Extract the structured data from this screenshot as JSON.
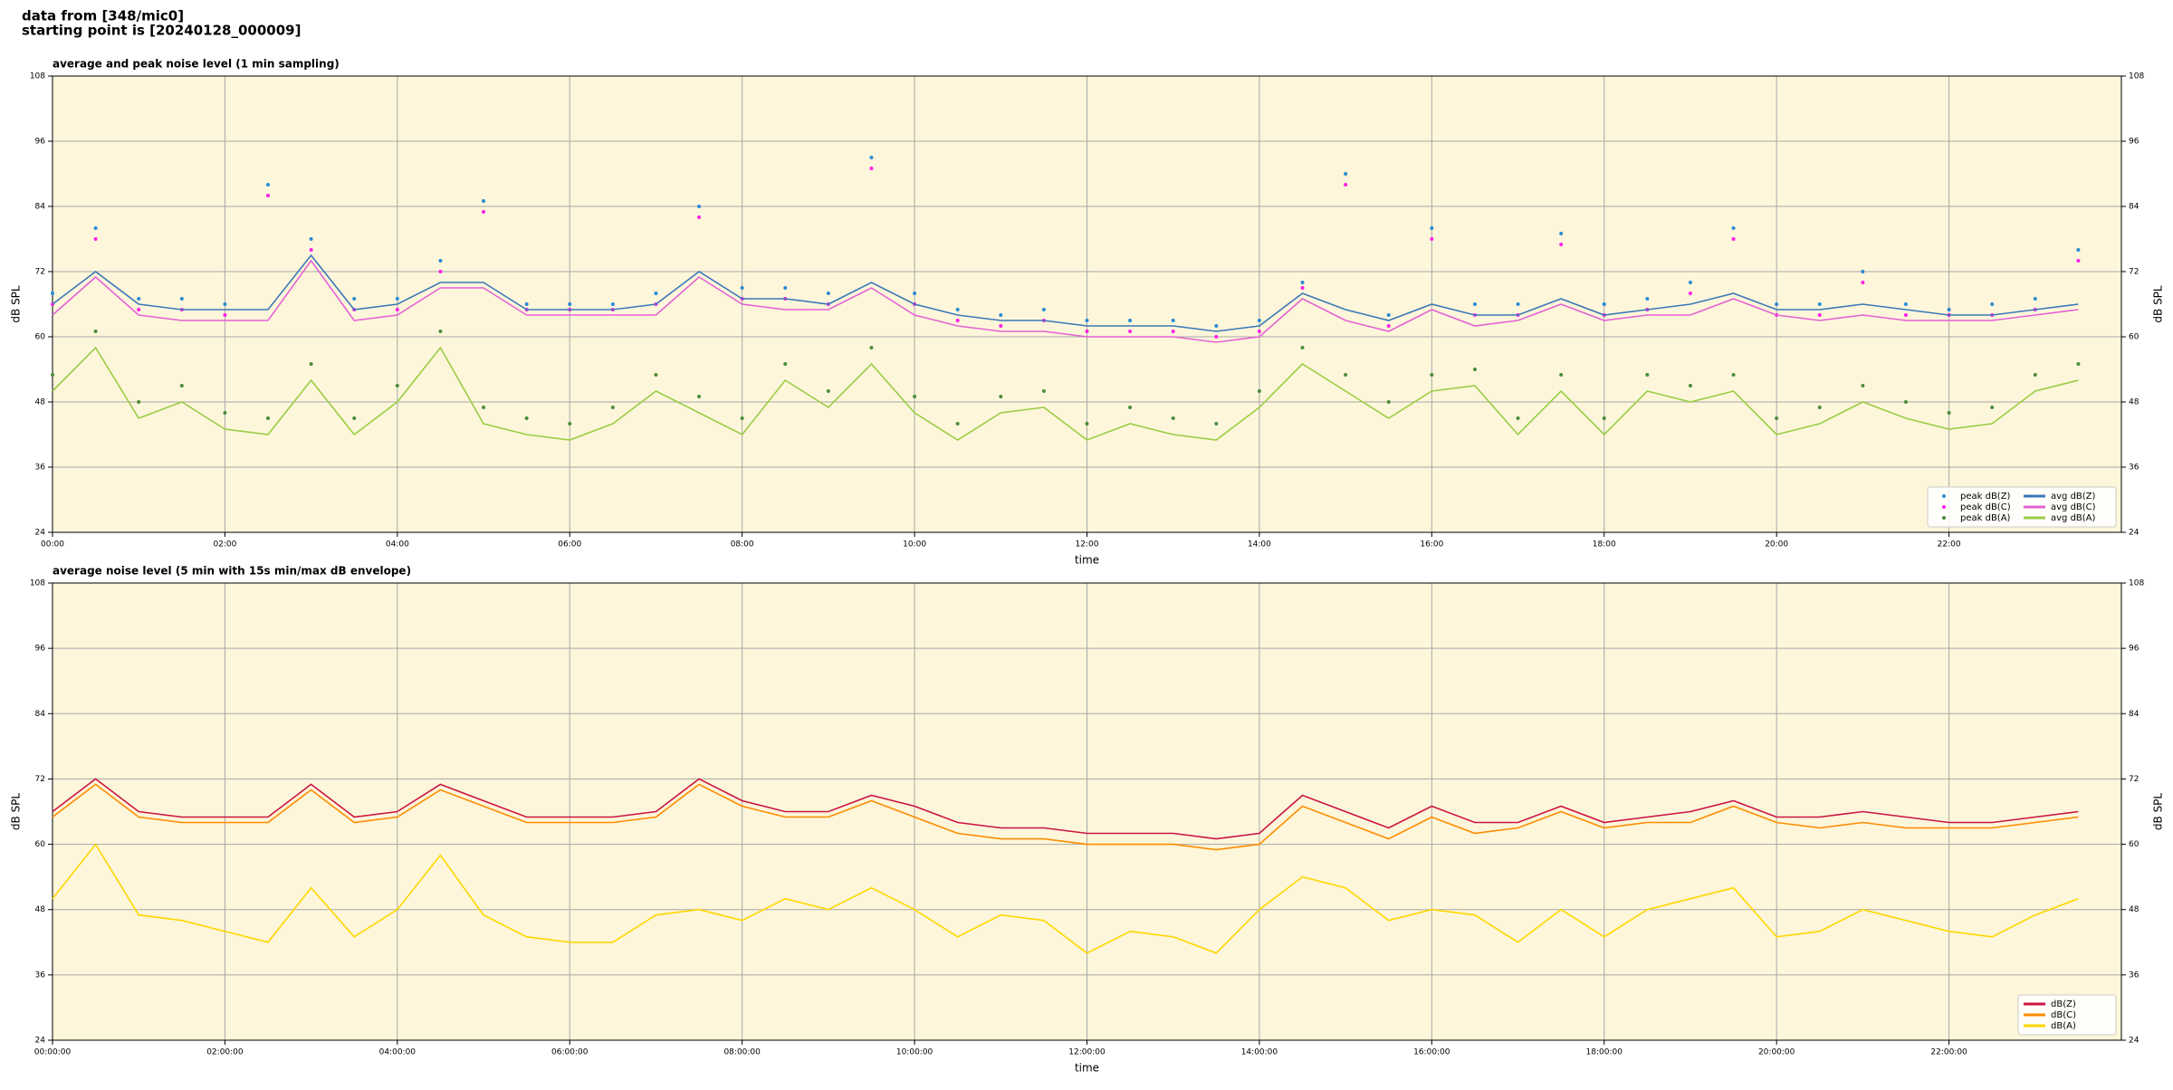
{
  "header": {
    "line1": "data from [348/mic0]",
    "line2": "starting point is [20240128_000009]"
  },
  "chart_data": [
    {
      "type": "line",
      "title": "average and peak noise level (1 min sampling)",
      "xlabel": "time",
      "ylabel": "dB SPL",
      "x": [
        0,
        0.5,
        1,
        1.5,
        2,
        2.5,
        3,
        3.5,
        4,
        4.5,
        5,
        5.5,
        6,
        6.5,
        7,
        7.5,
        8,
        8.5,
        9,
        9.5,
        10,
        10.5,
        11,
        11.5,
        12,
        12.5,
        13,
        13.5,
        14,
        14.5,
        15,
        15.5,
        16,
        16.5,
        17,
        17.5,
        18,
        18.5,
        19,
        19.5,
        20,
        20.5,
        21,
        21.5,
        22,
        22.5,
        23,
        23.5
      ],
      "xlim": [
        0,
        24
      ],
      "xticks": [
        {
          "value": 0,
          "label": "00:00"
        },
        {
          "value": 2,
          "label": "02:00"
        },
        {
          "value": 4,
          "label": "04:00"
        },
        {
          "value": 6,
          "label": "06:00"
        },
        {
          "value": 8,
          "label": "08:00"
        },
        {
          "value": 10,
          "label": "10:00"
        },
        {
          "value": 12,
          "label": "12:00"
        },
        {
          "value": 14,
          "label": "14:00"
        },
        {
          "value": 16,
          "label": "16:00"
        },
        {
          "value": 18,
          "label": "18:00"
        },
        {
          "value": 20,
          "label": "20:00"
        },
        {
          "value": 22,
          "label": "22:00"
        }
      ],
      "ylim": [
        24,
        108
      ],
      "yticks": [
        24,
        36,
        48,
        60,
        72,
        84,
        96,
        108
      ],
      "grid": true,
      "legend": "lower right",
      "series": [
        {
          "name": "peak dB(Z)",
          "color": "#2a8ad6",
          "style": "points",
          "values": [
            68,
            80,
            67,
            67,
            66,
            88,
            78,
            67,
            67,
            74,
            85,
            66,
            66,
            66,
            68,
            84,
            69,
            69,
            68,
            93,
            68,
            65,
            64,
            65,
            63,
            63,
            63,
            62,
            63,
            70,
            90,
            64,
            80,
            66,
            66,
            79,
            66,
            67,
            70,
            80,
            66,
            66,
            72,
            66,
            65,
            66,
            67,
            76
          ]
        },
        {
          "name": "peak dB(C)",
          "color": "#ff1ee8",
          "style": "points",
          "values": [
            66,
            78,
            65,
            65,
            64,
            86,
            76,
            65,
            65,
            72,
            83,
            65,
            65,
            65,
            66,
            82,
            67,
            67,
            66,
            91,
            66,
            63,
            62,
            63,
            61,
            61,
            61,
            60,
            61,
            69,
            88,
            62,
            78,
            64,
            64,
            77,
            64,
            65,
            68,
            78,
            64,
            64,
            70,
            64,
            64,
            64,
            65,
            74
          ]
        },
        {
          "name": "peak dB(A)",
          "color": "#4a8c3c",
          "style": "points",
          "values": [
            53,
            61,
            48,
            51,
            46,
            45,
            55,
            45,
            51,
            61,
            47,
            45,
            44,
            47,
            53,
            49,
            45,
            55,
            50,
            58,
            49,
            44,
            49,
            50,
            44,
            47,
            45,
            44,
            50,
            58,
            53,
            48,
            53,
            54,
            45,
            53,
            45,
            53,
            51,
            53,
            45,
            47,
            51,
            48,
            46,
            47,
            53,
            55
          ]
        },
        {
          "name": "avg dB(Z)",
          "color": "#3b78b8",
          "style": "line",
          "values": [
            66,
            72,
            66,
            65,
            65,
            65,
            75,
            65,
            66,
            70,
            70,
            65,
            65,
            65,
            66,
            72,
            67,
            67,
            66,
            70,
            66,
            64,
            63,
            63,
            62,
            62,
            62,
            61,
            62,
            68,
            65,
            63,
            66,
            64,
            64,
            67,
            64,
            65,
            66,
            68,
            65,
            65,
            66,
            65,
            64,
            64,
            65,
            66
          ]
        },
        {
          "name": "avg dB(C)",
          "color": "#e462d4",
          "style": "line",
          "values": [
            64,
            71,
            64,
            63,
            63,
            63,
            74,
            63,
            64,
            69,
            69,
            64,
            64,
            64,
            64,
            71,
            66,
            65,
            65,
            69,
            64,
            62,
            61,
            61,
            60,
            60,
            60,
            59,
            60,
            67,
            63,
            61,
            65,
            62,
            63,
            66,
            63,
            64,
            64,
            67,
            64,
            63,
            64,
            63,
            63,
            63,
            64,
            65
          ]
        },
        {
          "name": "avg dB(A)",
          "color": "#9acd45",
          "style": "line",
          "values": [
            50,
            58,
            45,
            48,
            43,
            42,
            52,
            42,
            48,
            58,
            44,
            42,
            41,
            44,
            50,
            46,
            42,
            52,
            47,
            55,
            46,
            41,
            46,
            47,
            41,
            44,
            42,
            41,
            47,
            55,
            50,
            45,
            50,
            51,
            42,
            50,
            42,
            50,
            48,
            50,
            42,
            44,
            48,
            45,
            43,
            44,
            50,
            52
          ]
        }
      ]
    },
    {
      "type": "line",
      "title": "average noise level (5 min with 15s min/max dB envelope)",
      "xlabel": "time",
      "ylabel": "dB SPL",
      "x": [
        0,
        0.5,
        1,
        1.5,
        2,
        2.5,
        3,
        3.5,
        4,
        4.5,
        5,
        5.5,
        6,
        6.5,
        7,
        7.5,
        8,
        8.5,
        9,
        9.5,
        10,
        10.5,
        11,
        11.5,
        12,
        12.5,
        13,
        13.5,
        14,
        14.5,
        15,
        15.5,
        16,
        16.5,
        17,
        17.5,
        18,
        18.5,
        19,
        19.5,
        20,
        20.5,
        21,
        21.5,
        22,
        22.5,
        23,
        23.5
      ],
      "xlim": [
        0,
        24
      ],
      "xticks": [
        {
          "value": 0,
          "label": "00:00:00"
        },
        {
          "value": 2,
          "label": "02:00:00"
        },
        {
          "value": 4,
          "label": "04:00:00"
        },
        {
          "value": 6,
          "label": "06:00:00"
        },
        {
          "value": 8,
          "label": "08:00:00"
        },
        {
          "value": 10,
          "label": "10:00:00"
        },
        {
          "value": 12,
          "label": "12:00:00"
        },
        {
          "value": 14,
          "label": "14:00:00"
        },
        {
          "value": 16,
          "label": "16:00:00"
        },
        {
          "value": 18,
          "label": "18:00:00"
        },
        {
          "value": 20,
          "label": "20:00:00"
        },
        {
          "value": 22,
          "label": "22:00:00"
        }
      ],
      "ylim": [
        24,
        108
      ],
      "yticks": [
        24,
        36,
        48,
        60,
        72,
        84,
        96,
        108
      ],
      "grid": true,
      "legend": "lower right",
      "series": [
        {
          "name": "dB(Z)",
          "color": "#cc1444",
          "style": "line",
          "values": [
            66,
            72,
            66,
            65,
            65,
            65,
            71,
            65,
            66,
            71,
            68,
            65,
            65,
            65,
            66,
            72,
            68,
            66,
            66,
            69,
            67,
            64,
            63,
            63,
            62,
            62,
            62,
            61,
            62,
            69,
            66,
            63,
            67,
            64,
            64,
            67,
            64,
            65,
            66,
            68,
            65,
            65,
            66,
            65,
            64,
            64,
            65,
            66
          ]
        },
        {
          "name": "dB(C)",
          "color": "#ff8c00",
          "style": "line",
          "values": [
            65,
            71,
            65,
            64,
            64,
            64,
            70,
            64,
            65,
            70,
            67,
            64,
            64,
            64,
            65,
            71,
            67,
            65,
            65,
            68,
            65,
            62,
            61,
            61,
            60,
            60,
            60,
            59,
            60,
            67,
            64,
            61,
            65,
            62,
            63,
            66,
            63,
            64,
            64,
            67,
            64,
            63,
            64,
            63,
            63,
            63,
            64,
            65
          ]
        },
        {
          "name": "dB(A)",
          "color": "#ffd700",
          "style": "line",
          "values": [
            50,
            60,
            47,
            46,
            44,
            42,
            52,
            43,
            48,
            58,
            47,
            43,
            42,
            42,
            47,
            48,
            46,
            50,
            48,
            52,
            48,
            43,
            47,
            46,
            40,
            44,
            43,
            40,
            48,
            54,
            52,
            46,
            48,
            47,
            42,
            48,
            43,
            48,
            50,
            52,
            43,
            44,
            48,
            46,
            44,
            43,
            47,
            50
          ]
        }
      ]
    }
  ]
}
